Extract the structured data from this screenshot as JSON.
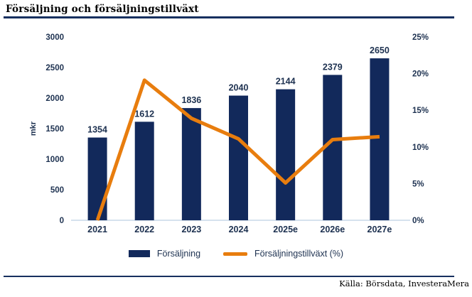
{
  "header": {
    "title": "Försäljning och försäljningstillväxt"
  },
  "footer": {
    "source": "Källa: Börsdata, InvesteraMera"
  },
  "colors": {
    "navy": "#12295B",
    "navy_text": "#1D3150",
    "orange": "#E87D0E",
    "rule": "#17305F",
    "baseline": "#C9D9E8",
    "ink": "#000000"
  },
  "legend": {
    "items": [
      {
        "label": "Försäljning",
        "type": "bar"
      },
      {
        "label": "Försäljningstillväxt (%)",
        "type": "line"
      }
    ]
  },
  "chart_data": {
    "type": "bar",
    "subtype": "bar+line-combo",
    "title": "Försäljning och försäljningstillväxt",
    "categories": [
      "2021",
      "2022",
      "2023",
      "2024",
      "2025e",
      "2026e",
      "2027e"
    ],
    "series": [
      {
        "name": "Försäljning",
        "type": "bar",
        "axis": "left",
        "values": [
          1354,
          1612,
          1836,
          2040,
          2144,
          2379,
          2650
        ]
      },
      {
        "name": "Försäljningstillväxt (%)",
        "type": "line",
        "axis": "right",
        "values": [
          0,
          19.1,
          13.9,
          11.1,
          5.1,
          11.0,
          11.4
        ]
      }
    ],
    "left_axis": {
      "label": "mkr",
      "ticks": [
        "0",
        "500",
        "1000",
        "1500",
        "2000",
        "2500",
        "3000"
      ],
      "tick_values": [
        0,
        500,
        1000,
        1500,
        2000,
        2500,
        3000
      ],
      "range": [
        0,
        3000
      ]
    },
    "right_axis": {
      "ticks": [
        "0%",
        "5%",
        "10%",
        "15%",
        "20%",
        "25%"
      ],
      "tick_values": [
        0,
        5,
        10,
        15,
        20,
        25
      ],
      "range": [
        0,
        25
      ]
    },
    "data_labels": true,
    "grid": false,
    "legend_position": "bottom"
  }
}
